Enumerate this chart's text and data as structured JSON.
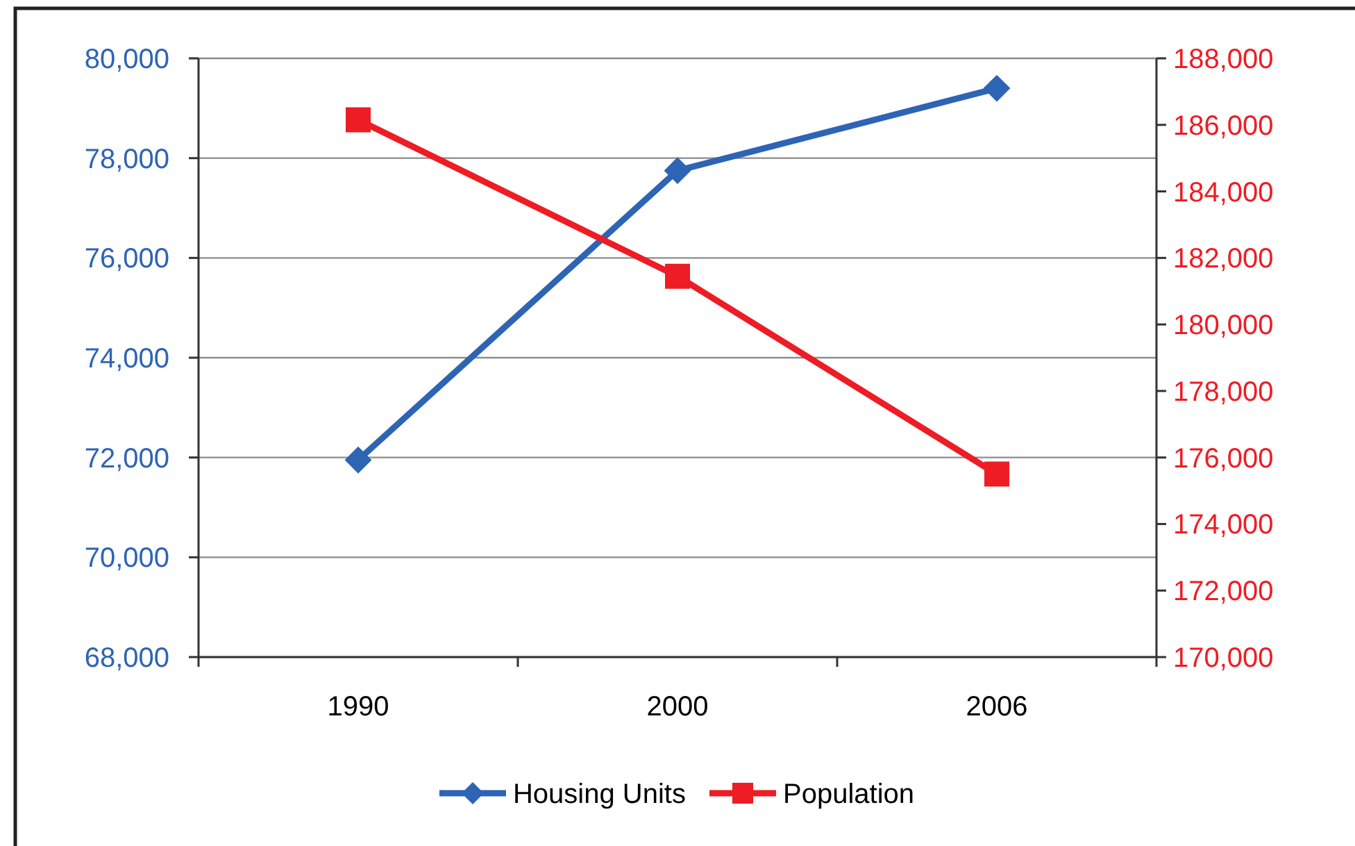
{
  "chart_data": {
    "type": "line",
    "categories": [
      "1990",
      "2000",
      "2006"
    ],
    "series": [
      {
        "name": "Housing Units",
        "color": "#2e64b4",
        "values": [
          71950,
          77750,
          79400
        ],
        "marker": "diamond"
      },
      {
        "name": "Population",
        "color": "#ee1c24",
        "values": [
          186150,
          181450,
          175500
        ],
        "marker": "square",
        "axis": "y2"
      }
    ],
    "ylim": [
      68000,
      80000
    ],
    "yticks": [
      {
        "value": 68000,
        "label": "68,000"
      },
      {
        "value": 70000,
        "label": "70,000"
      },
      {
        "value": 72000,
        "label": "72,000"
      },
      {
        "value": 74000,
        "label": "74,000"
      },
      {
        "value": 76000,
        "label": "76,000"
      },
      {
        "value": 78000,
        "label": "78,000"
      },
      {
        "value": 80000,
        "label": "80,000"
      }
    ],
    "y2lim": [
      170000,
      188000
    ],
    "y2ticks": [
      {
        "value": 170000,
        "label": "170,000"
      },
      {
        "value": 172000,
        "label": "172,000"
      },
      {
        "value": 174000,
        "label": "174,000"
      },
      {
        "value": 176000,
        "label": "176,000"
      },
      {
        "value": 178000,
        "label": "178,000"
      },
      {
        "value": 180000,
        "label": "180,000"
      },
      {
        "value": 182000,
        "label": "182,000"
      },
      {
        "value": 184000,
        "label": "184,000"
      },
      {
        "value": 186000,
        "label": "186,000"
      },
      {
        "value": 188000,
        "label": "188,000"
      }
    ],
    "grid": "y",
    "legend": "bottom",
    "line_style": "solid"
  }
}
